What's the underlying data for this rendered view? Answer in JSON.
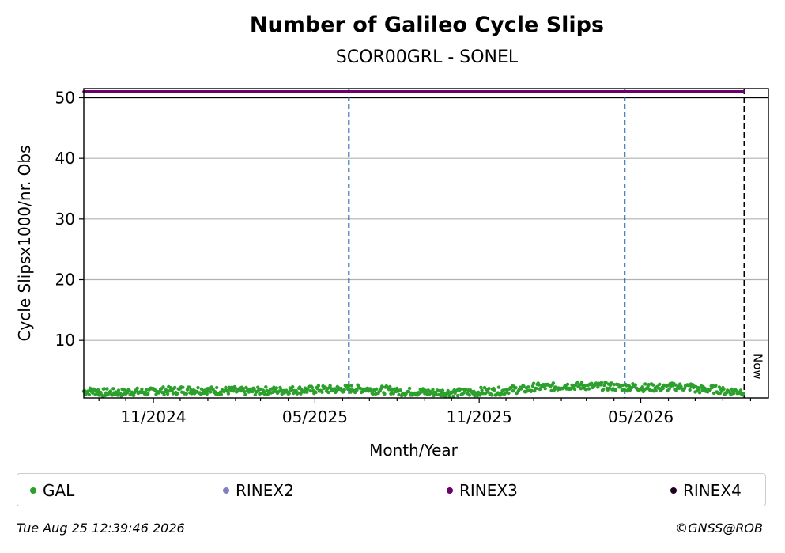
{
  "chart_data": {
    "type": "scatter",
    "title": "Number of Galileo Cycle Slips",
    "subtitle": "SCOR00GRL - SONEL",
    "xlabel": "Month/Year",
    "ylabel": "Cycle Slipsx1000/nr. Obs",
    "x_tick_labels": [
      "11/2024",
      "05/2025",
      "11/2025",
      "05/2026"
    ],
    "x_range": [
      "2024-08-15",
      "2026-09-21"
    ],
    "ylim": [
      0.5,
      51.5
    ],
    "y_ticks": [
      10,
      20,
      30,
      40,
      50
    ],
    "grid": "horizontal",
    "reference_line_y": 50,
    "now_label": "Now",
    "now_date": "2026-08-25",
    "vertical_events": [
      "2025-06-08",
      "2026-04-13"
    ],
    "series": [
      {
        "name": "GAL",
        "color": "#2ca02c",
        "date_range": [
          "2024-08-15",
          "2026-08-24"
        ],
        "values_description_monthly_mean": [
          {
            "x": "2024-09",
            "y": 1.4
          },
          {
            "x": "2024-10",
            "y": 1.5
          },
          {
            "x": "2024-11",
            "y": 1.7
          },
          {
            "x": "2024-12",
            "y": 1.8
          },
          {
            "x": "2025-01",
            "y": 1.7
          },
          {
            "x": "2025-02",
            "y": 1.6
          },
          {
            "x": "2025-03",
            "y": 1.7
          },
          {
            "x": "2025-04",
            "y": 1.8
          },
          {
            "x": "2025-05",
            "y": 1.9
          },
          {
            "x": "2025-06",
            "y": 2.0
          },
          {
            "x": "2025-07",
            "y": 1.8
          },
          {
            "x": "2025-08",
            "y": 1.5
          },
          {
            "x": "2025-09",
            "y": 1.4
          },
          {
            "x": "2025-10",
            "y": 1.4
          },
          {
            "x": "2025-11",
            "y": 1.6
          },
          {
            "x": "2025-12",
            "y": 1.9
          },
          {
            "x": "2026-01",
            "y": 2.3
          },
          {
            "x": "2026-02",
            "y": 2.5
          },
          {
            "x": "2026-03",
            "y": 2.4
          },
          {
            "x": "2026-04",
            "y": 2.3
          },
          {
            "x": "2026-05",
            "y": 2.2
          },
          {
            "x": "2026-06",
            "y": 2.3
          },
          {
            "x": "2026-07",
            "y": 1.9
          },
          {
            "x": "2026-08",
            "y": 1.6
          }
        ]
      },
      {
        "name": "RINEX2",
        "color": "#8080c0",
        "values": []
      },
      {
        "name": "RINEX3",
        "color": "#6b006b",
        "date_range": [
          "2024-08-15",
          "2026-08-24"
        ],
        "constant_y": 51
      },
      {
        "name": "RINEX4",
        "color": "#200020",
        "values": []
      }
    ]
  },
  "legend": [
    {
      "label": "GAL",
      "color": "#2ca02c"
    },
    {
      "label": "RINEX2",
      "color": "#8080c0"
    },
    {
      "label": "RINEX3",
      "color": "#6b006b"
    },
    {
      "label": "RINEX4",
      "color": "#200020"
    }
  ],
  "footer": {
    "timestamp": "Tue Aug 25 12:39:46 2026",
    "credit": "©GNSS@ROB"
  }
}
